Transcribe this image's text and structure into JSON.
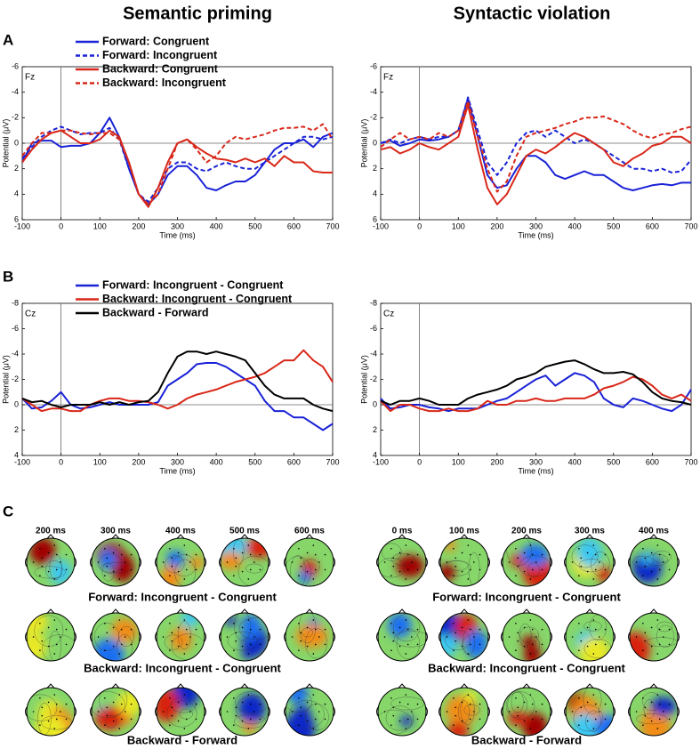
{
  "titles": [
    "Semantic priming",
    "Syntactic violation"
  ],
  "panels": [
    "A",
    "B",
    "C"
  ],
  "chart_data": [
    {
      "type": "line",
      "annotation": "Fz",
      "xlabel": "Time (ms)",
      "ylabel": "Potential (μV)",
      "xlim": [
        -100,
        700
      ],
      "xticks": [
        -100,
        0,
        100,
        200,
        300,
        400,
        500,
        600,
        700
      ],
      "ylim": [
        6,
        -6
      ],
      "yticks": [
        6,
        4,
        2,
        0,
        -2,
        -4,
        -6
      ],
      "x": [
        -100,
        -75,
        -50,
        -25,
        0,
        25,
        50,
        75,
        100,
        125,
        150,
        175,
        200,
        225,
        250,
        275,
        300,
        325,
        350,
        375,
        400,
        425,
        450,
        475,
        500,
        525,
        550,
        575,
        600,
        625,
        650,
        675,
        700
      ],
      "series": [
        {
          "name": "Forward: Congruent",
          "color": "#1a22d6",
          "style": "solid",
          "values": [
            1.5,
            0,
            -0.2,
            -0.2,
            0.3,
            0.2,
            0.2,
            0,
            -0.8,
            -2,
            -0.5,
            2,
            4,
            4.8,
            4,
            2.5,
            1.8,
            1.8,
            2.5,
            3.5,
            3.7,
            3.3,
            3,
            3,
            2.5,
            1.5,
            0.5,
            0,
            0,
            -0.3,
            0.3,
            -0.5,
            -0.8
          ]
        },
        {
          "name": "Forward: Incongruent",
          "color": "#1a22d6",
          "style": "dashed",
          "values": [
            1.2,
            0.3,
            -0.5,
            -1,
            -1.3,
            -1,
            -0.7,
            -0.8,
            -0.8,
            -1.2,
            -0.3,
            2,
            4,
            4.6,
            3.5,
            2,
            1.5,
            1.5,
            2,
            2.2,
            1.8,
            1.5,
            1.8,
            2,
            2,
            1.5,
            1,
            0.5,
            0,
            -0.5,
            -0.5,
            -0.3,
            -0.5
          ]
        },
        {
          "name": "Backward: Congruent",
          "color": "#d8281a",
          "style": "solid",
          "values": [
            1.5,
            0.5,
            -0.3,
            -0.8,
            -1,
            -0.5,
            0,
            0,
            -0.3,
            -1,
            -0.5,
            1.5,
            4,
            5,
            3.5,
            1.5,
            0,
            -0.3,
            0.3,
            0.8,
            1.2,
            1.3,
            1.5,
            1.2,
            1.5,
            1.2,
            1.8,
            1,
            1.5,
            1.5,
            2.2,
            2.3,
            2.3
          ]
        },
        {
          "name": "Backward: Incongruent",
          "color": "#d8281a",
          "style": "dashed",
          "values": [
            1,
            0,
            -0.8,
            -0.8,
            -1,
            -1,
            -0.8,
            -0.7,
            -0.8,
            -0.8,
            -0.3,
            1.5,
            4,
            4.8,
            4,
            2,
            0,
            -0.3,
            0.5,
            1.5,
            1,
            0,
            -0.5,
            -0.3,
            -0.5,
            -0.7,
            -1,
            -1.2,
            -1.2,
            -1.3,
            -1,
            -1.5,
            -0.3
          ]
        }
      ]
    },
    {
      "type": "line",
      "annotation": "Fz",
      "xlabel": "Time (ms)",
      "ylabel": "Potential (μV)",
      "xlim": [
        -100,
        700
      ],
      "xticks": [
        -100,
        0,
        100,
        200,
        300,
        400,
        500,
        600,
        700
      ],
      "ylim": [
        6,
        -6
      ],
      "yticks": [
        6,
        4,
        2,
        0,
        -2,
        -4,
        -6
      ],
      "x": [
        -100,
        -75,
        -50,
        -25,
        0,
        25,
        50,
        75,
        100,
        125,
        150,
        175,
        200,
        225,
        250,
        275,
        300,
        325,
        350,
        375,
        400,
        425,
        450,
        475,
        500,
        525,
        550,
        575,
        600,
        625,
        650,
        675,
        700
      ],
      "series": [
        {
          "color": "#1a22d6",
          "style": "solid",
          "values": [
            0,
            -0.2,
            0.2,
            0,
            -0.3,
            -0.2,
            -0.3,
            -0.5,
            -1,
            -3.5,
            -0.5,
            2.5,
            3.5,
            3.3,
            2,
            1,
            1,
            1.5,
            2.5,
            2.8,
            2.5,
            2.2,
            2.5,
            2.5,
            3,
            3.5,
            3.7,
            3.5,
            3.3,
            3.2,
            3.3,
            3.1,
            3.1
          ]
        },
        {
          "color": "#1a22d6",
          "style": "dashed",
          "values": [
            0,
            -0.3,
            0,
            -0.3,
            -0.5,
            -0.3,
            -0.5,
            -0.5,
            -1,
            -3.6,
            -1,
            1.5,
            2.5,
            1.5,
            0,
            -0.8,
            -1,
            -0.5,
            -1,
            -0.5,
            0,
            -0.3,
            0,
            0.5,
            1,
            1.5,
            2,
            2,
            2.2,
            2,
            2.3,
            2.2,
            1.3
          ]
        },
        {
          "color": "#d8281a",
          "style": "solid",
          "values": [
            0.5,
            0.3,
            0.8,
            0.5,
            0,
            0.3,
            0.5,
            0,
            -0.5,
            -3,
            0.5,
            3.5,
            4.8,
            4,
            2.5,
            1,
            0.5,
            0.8,
            0.3,
            -0.3,
            -0.8,
            -0.5,
            0,
            0.5,
            1.5,
            1.8,
            1.2,
            0.8,
            0.2,
            0,
            -0.5,
            -0.5,
            0
          ]
        },
        {
          "color": "#d8281a",
          "style": "dashed",
          "values": [
            0.3,
            -0.3,
            -0.8,
            -0.3,
            -0.5,
            -0.3,
            -0.8,
            -0.5,
            -1,
            -3.3,
            -0.5,
            2,
            3.8,
            3,
            1,
            -0.5,
            -0.8,
            -1,
            -1.2,
            -1.5,
            -1.7,
            -2,
            -2,
            -2.1,
            -1.8,
            -1.5,
            -1,
            -0.6,
            -0.4,
            -0.7,
            -0.8,
            -1.1,
            -1.3
          ]
        }
      ]
    },
    {
      "type": "line",
      "annotation": "Cz",
      "xlabel": "Time (ms)",
      "ylabel": "Potential (μV)",
      "xlim": [
        -100,
        700
      ],
      "xticks": [
        -100,
        0,
        100,
        200,
        300,
        400,
        500,
        600,
        700
      ],
      "ylim": [
        4,
        -8
      ],
      "yticks": [
        4,
        2,
        0,
        -2,
        -4,
        -6,
        -8
      ],
      "x": [
        -100,
        -75,
        -50,
        -25,
        0,
        25,
        50,
        75,
        100,
        125,
        150,
        175,
        200,
        225,
        250,
        275,
        300,
        325,
        350,
        375,
        400,
        425,
        450,
        475,
        500,
        525,
        550,
        575,
        600,
        625,
        650,
        675,
        700
      ],
      "series": [
        {
          "name": "Forward: Incongruent - Congruent",
          "color": "#1a22d6",
          "style": "solid",
          "values": [
            -0.5,
            0.3,
            0.2,
            -0.3,
            -1,
            0,
            0.3,
            0.2,
            0,
            -0.2,
            0,
            0,
            0,
            0,
            -0.2,
            -1.5,
            -2,
            -2.5,
            -3.2,
            -3.3,
            -3.3,
            -3,
            -2.5,
            -2,
            -1.5,
            -0.3,
            0.5,
            0.5,
            1,
            1,
            1.5,
            2,
            1.5
          ]
        },
        {
          "name": "Backward: Incongruent - Congruent",
          "color": "#d8281a",
          "style": "solid",
          "values": [
            -0.5,
            0,
            0.5,
            0.3,
            0.3,
            0.5,
            0.5,
            0,
            -0.3,
            -0.5,
            -0.5,
            -0.3,
            -0.3,
            -0.2,
            0,
            0.3,
            0,
            -0.5,
            -0.8,
            -1,
            -1.2,
            -1.5,
            -1.8,
            -2,
            -2.2,
            -2.5,
            -3,
            -3.5,
            -3.5,
            -4.3,
            -3.5,
            -3,
            -1.8
          ]
        },
        {
          "name": "Backward - Forward",
          "color": "#000000",
          "style": "solid",
          "values": [
            -0.5,
            -0.2,
            -0.3,
            0,
            0.2,
            0,
            0,
            0,
            -0.2,
            0,
            -0.2,
            0,
            -0.2,
            -0.3,
            -1,
            -2.5,
            -3.8,
            -4.2,
            -4.2,
            -4,
            -4.2,
            -4,
            -3.8,
            -3.5,
            -2.5,
            -1.5,
            -0.8,
            -0.5,
            -0.5,
            -0.5,
            0,
            0.3,
            0.5
          ]
        }
      ]
    },
    {
      "type": "line",
      "annotation": "Cz",
      "xlabel": "Time (ms)",
      "ylabel": "Potential (μV)",
      "xlim": [
        -100,
        700
      ],
      "xticks": [
        -100,
        0,
        100,
        200,
        300,
        400,
        500,
        600,
        700
      ],
      "ylim": [
        4,
        -8
      ],
      "yticks": [
        4,
        2,
        0,
        -2,
        -4,
        -6,
        -8
      ],
      "x": [
        -100,
        -75,
        -50,
        -25,
        0,
        25,
        50,
        75,
        100,
        125,
        150,
        175,
        200,
        225,
        250,
        275,
        300,
        325,
        350,
        375,
        400,
        425,
        450,
        475,
        500,
        525,
        550,
        575,
        600,
        625,
        650,
        675,
        700
      ],
      "series": [
        {
          "color": "#1a22d6",
          "style": "solid",
          "values": [
            -0.5,
            0.3,
            0.2,
            0,
            0,
            0.2,
            0.3,
            0.5,
            0.3,
            0.3,
            0.3,
            0,
            -0.3,
            -0.5,
            -1,
            -1.5,
            -2,
            -2.3,
            -1.5,
            -2,
            -2.5,
            -2.3,
            -1.8,
            -0.5,
            0,
            0.2,
            -0.5,
            -0.3,
            0,
            0.3,
            0.5,
            0,
            -1.2
          ]
        },
        {
          "color": "#d8281a",
          "style": "solid",
          "values": [
            -0.3,
            0.5,
            0,
            0,
            0.3,
            0.5,
            0.5,
            0.3,
            0.5,
            0.5,
            0.3,
            -0.3,
            0,
            0,
            -0.3,
            -0.3,
            -0.5,
            -0.3,
            -0.3,
            -0.5,
            -0.5,
            -0.5,
            -0.8,
            -1.3,
            -1.5,
            -1.8,
            -2.2,
            -2,
            -1.5,
            -0.8,
            -0.5,
            -0.8,
            -0.3
          ]
        },
        {
          "color": "#000000",
          "style": "solid",
          "values": [
            -0.3,
            0,
            -0.3,
            -0.3,
            -0.5,
            -0.3,
            0,
            0,
            0,
            -0.5,
            -0.8,
            -1,
            -1.2,
            -1.5,
            -2,
            -2.2,
            -2.5,
            -3,
            -3.2,
            -3.4,
            -3.5,
            -3.2,
            -2.8,
            -2.5,
            -2.5,
            -2.6,
            -2.4,
            -1.8,
            -1,
            -0.5,
            -0.3,
            -0.2,
            0
          ]
        }
      ]
    }
  ],
  "topomaps": [
    {
      "times": [
        "200 ms",
        "300 ms",
        "400 ms",
        "500 ms",
        "600 ms"
      ],
      "rows": [
        "Forward: Incongruent - Congruent",
        "Backward: Incongruent - Congruent",
        "Backward - Forward"
      ]
    },
    {
      "times": [
        "0 ms",
        "100 ms",
        "200 ms",
        "300 ms",
        "400 ms"
      ],
      "rows": [
        "Forward: Incongruent - Congruent",
        "Backward: Incongruent - Congruent",
        "Backward - Forward"
      ]
    }
  ]
}
